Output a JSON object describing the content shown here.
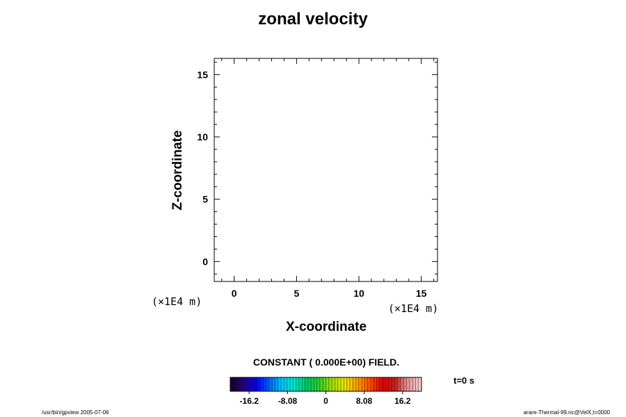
{
  "chart_data": {
    "type": "heatmap",
    "title": "zonal velocity",
    "xlabel": "X-coordinate",
    "ylabel": "Z-coordinate",
    "x_unit": "(×1E4 m)",
    "y_unit": "(×1E4 m)",
    "xlim": [
      -1.6,
      16.3
    ],
    "ylim": [
      -1.6,
      16.3
    ],
    "x_ticks": [
      0,
      5,
      10,
      15
    ],
    "y_ticks": [
      0,
      5,
      10,
      15
    ],
    "x_tick_labels": [
      "0",
      "5",
      "10",
      "15"
    ],
    "y_tick_labels": [
      "0",
      "5",
      "10",
      "15"
    ],
    "field_note": "CONSTANT ( 0.000E+00) FIELD.",
    "field_value": 0,
    "colorbar": {
      "range": [
        -20.2,
        20.2
      ],
      "ticks": [
        -16.2,
        -8.08,
        0,
        8.08,
        16.2
      ],
      "tick_labels": [
        "-16.2",
        "-8.08",
        "0",
        "8.08",
        "16.2"
      ],
      "palette": "rainbow",
      "colors": [
        "#1a0033",
        "#2a0080",
        "#0000ff",
        "#0066ff",
        "#00c8ff",
        "#00e6c8",
        "#00c864",
        "#32cd32",
        "#a0e000",
        "#e6e600",
        "#ffa000",
        "#ff5000",
        "#e60000",
        "#c81e1e",
        "#e69696",
        "#f5c8c8"
      ]
    },
    "time_label": "t=0 s",
    "grid": false
  },
  "footer": {
    "left": "/usr/bin/gpview 2005-07-06",
    "right": "arare-Thermal-99.nc@VelX,t=0000"
  }
}
